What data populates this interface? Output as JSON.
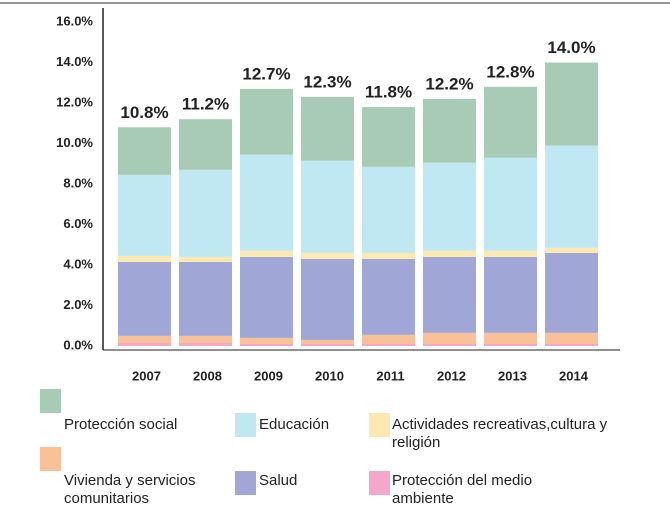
{
  "chart_data": {
    "type": "stacked_bar",
    "categories": [
      "2007",
      "2008",
      "2009",
      "2010",
      "2011",
      "2012",
      "2013",
      "2014"
    ],
    "series": [
      {
        "name": "Protección del medio ambiente",
        "color": "#f4a7c8",
        "values": [
          0.15,
          0.15,
          0.1,
          0.1,
          0.1,
          0.1,
          0.1,
          0.1
        ]
      },
      {
        "name": "Vivienda y servicios comunitarios",
        "color": "#f9c197",
        "values": [
          0.35,
          0.35,
          0.3,
          0.2,
          0.45,
          0.55,
          0.55,
          0.55
        ]
      },
      {
        "name": "Salud",
        "color": "#a0a7d6",
        "values": [
          3.65,
          3.65,
          4.0,
          4.0,
          3.75,
          3.75,
          3.75,
          3.95
        ]
      },
      {
        "name": "Actividades recreativas,cultura y religión",
        "color": "#fde9b0",
        "values": [
          0.3,
          0.25,
          0.3,
          0.3,
          0.3,
          0.3,
          0.3,
          0.25
        ]
      },
      {
        "name": "Educación",
        "color": "#bfe8f2",
        "values": [
          4.0,
          4.3,
          4.75,
          4.55,
          4.25,
          4.35,
          4.6,
          5.05
        ]
      },
      {
        "name": "Protección social",
        "color": "#a8cbb5",
        "values": [
          2.35,
          2.5,
          3.25,
          3.15,
          2.95,
          3.15,
          3.5,
          4.1
        ]
      }
    ],
    "total_labels": [
      "10.8%",
      "11.2%",
      "12.7%",
      "12.3%",
      "11.8%",
      "12.2%",
      "12.8%",
      "14.0%"
    ],
    "ylim": [
      0,
      16
    ],
    "yticks": [
      {
        "value": 0,
        "label": "0.0%"
      },
      {
        "value": 2,
        "label": "2.0%"
      },
      {
        "value": 4,
        "label": "4.0%"
      },
      {
        "value": 6,
        "label": "6.0%"
      },
      {
        "value": 8,
        "label": "8.0%"
      },
      {
        "value": 10,
        "label": "10.0%"
      },
      {
        "value": 12,
        "label": "12.0%"
      },
      {
        "value": 14,
        "label": "14.0%"
      },
      {
        "value": 16,
        "label": "16.0%"
      }
    ],
    "grid": false
  }
}
